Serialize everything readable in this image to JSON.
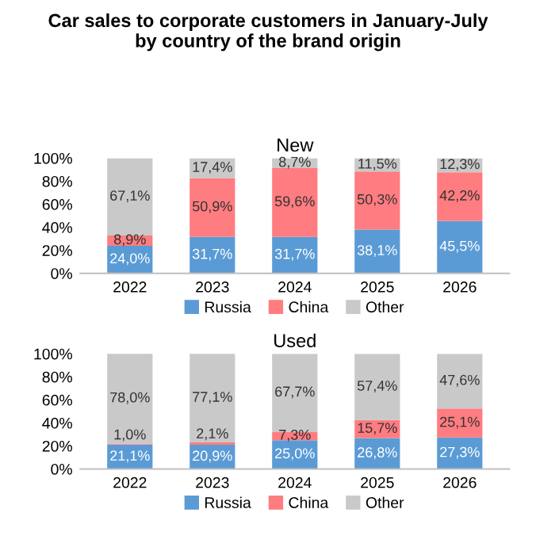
{
  "chart_data": [
    {
      "type": "bar",
      "stacked": true,
      "title": "Car sales to corporate customers in January-July\nby country of the brand origin",
      "subtitle": "New",
      "categories": [
        "2022",
        "2023",
        "2024",
        "2025",
        "2026"
      ],
      "series": [
        {
          "name": "Russia",
          "color": "#5b9bd5",
          "values": [
            24.0,
            31.7,
            31.7,
            38.1,
            45.5
          ],
          "value_labels": [
            "24,0%",
            "31,7%",
            "31,7%",
            "38,1%",
            "45,5%"
          ]
        },
        {
          "name": "China",
          "color": "#ff7c80",
          "values": [
            8.9,
            50.9,
            59.6,
            50.3,
            42.2
          ],
          "value_labels": [
            "8,9%",
            "50,9%",
            "59,6%",
            "50,3%",
            "42,2%"
          ]
        },
        {
          "name": "Other",
          "color": "#c9c9c9",
          "values": [
            67.1,
            17.4,
            8.7,
            11.5,
            12.3
          ],
          "value_labels": [
            "67,1%",
            "17,4%",
            "8,7%",
            "11,5%",
            "12,3%"
          ]
        }
      ],
      "ylim": [
        0,
        100
      ],
      "yticks": [
        {
          "value": 0,
          "label": "0%"
        },
        {
          "value": 20,
          "label": "20%"
        },
        {
          "value": 40,
          "label": "40%"
        },
        {
          "value": 60,
          "label": "60%"
        },
        {
          "value": 80,
          "label": "80%"
        },
        {
          "value": 100,
          "label": "100%"
        }
      ],
      "legend": "bottom",
      "grid": false
    },
    {
      "type": "bar",
      "stacked": true,
      "title": "Used",
      "categories": [
        "2022",
        "2023",
        "2024",
        "2025",
        "2026"
      ],
      "series": [
        {
          "name": "Russia",
          "color": "#5b9bd5",
          "values": [
            21.1,
            20.9,
            25.0,
            26.8,
            27.3
          ],
          "value_labels": [
            "21,1%",
            "20,9%",
            "25,0%",
            "26,8%",
            "27,3%"
          ]
        },
        {
          "name": "China",
          "color": "#ff7c80",
          "values": [
            1.0,
            2.1,
            7.3,
            15.7,
            25.1
          ],
          "value_labels": [
            "1,0%",
            "2,1%",
            "7,3%",
            "15,7%",
            "25,1%"
          ]
        },
        {
          "name": "Other",
          "color": "#c9c9c9",
          "values": [
            78.0,
            77.1,
            67.7,
            57.4,
            47.6
          ],
          "value_labels": [
            "78,0%",
            "77,1%",
            "67,7%",
            "57,4%",
            "47,6%"
          ]
        }
      ],
      "ylim": [
        0,
        100
      ],
      "yticks": [
        {
          "value": 0,
          "label": "0%"
        },
        {
          "value": 20,
          "label": "20%"
        },
        {
          "value": 40,
          "label": "40%"
        },
        {
          "value": 60,
          "label": "60%"
        },
        {
          "value": 80,
          "label": "80%"
        },
        {
          "value": 100,
          "label": "100%"
        }
      ],
      "legend": "bottom",
      "grid": false
    }
  ]
}
